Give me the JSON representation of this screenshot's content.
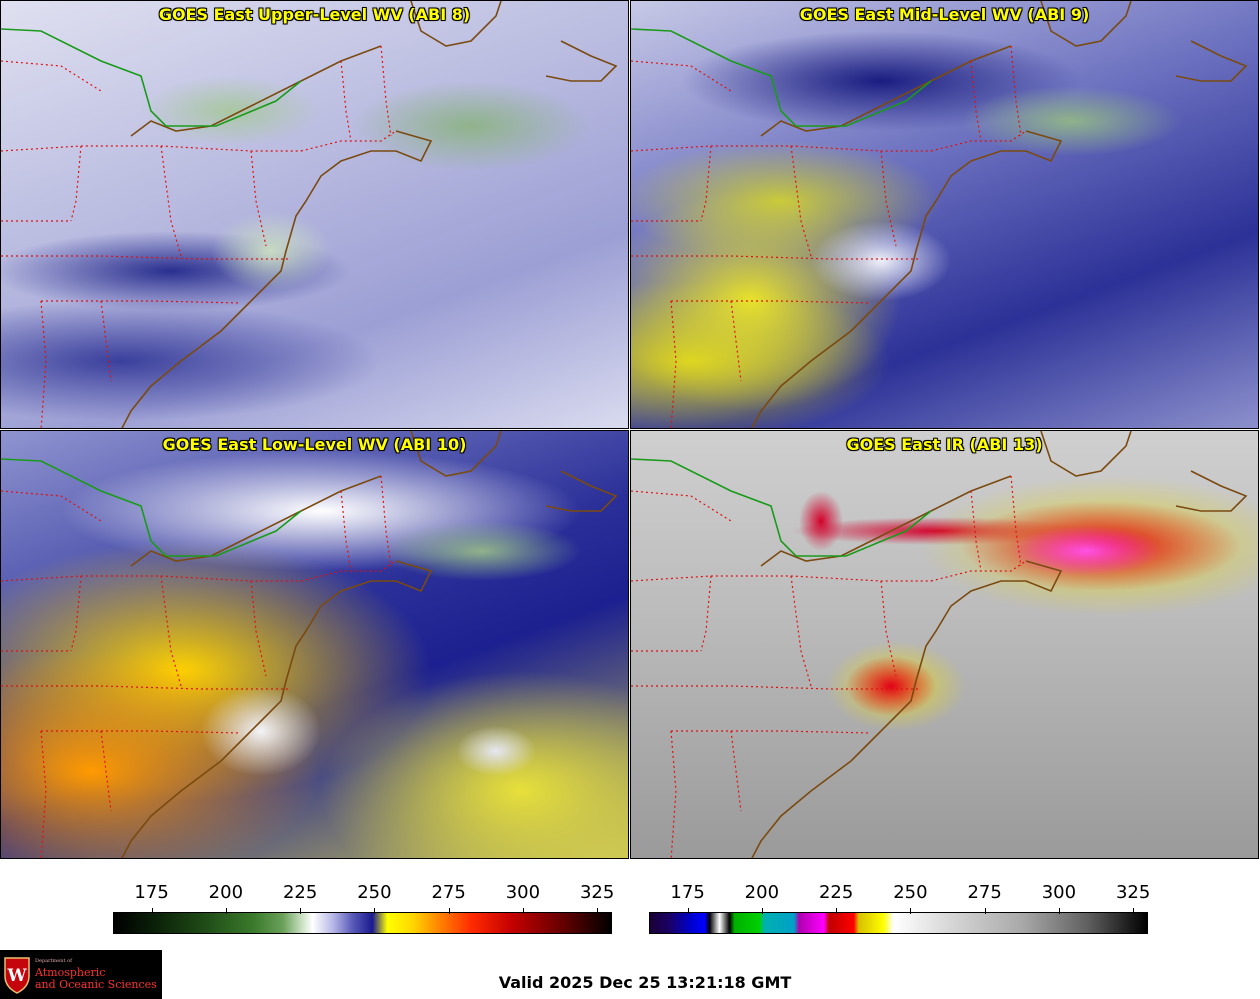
{
  "panels": [
    {
      "title": "GOES East Upper-Level WV (ABI 8)"
    },
    {
      "title": "GOES East Mid-Level WV (ABI 9)"
    },
    {
      "title": "GOES East Low-Level WV (ABI 10)"
    },
    {
      "title": "GOES East IR (ABI 13)"
    }
  ],
  "colorbars": [
    {
      "ticks": [
        "175",
        "200",
        "225",
        "250",
        "275",
        "300",
        "325"
      ],
      "min": 162,
      "max": 330
    },
    {
      "ticks": [
        "175",
        "200",
        "225",
        "250",
        "275",
        "300",
        "325"
      ],
      "min": 162,
      "max": 330
    }
  ],
  "logo": {
    "dept": "Department of",
    "line1": "Atmospheric",
    "line2": "and Oceanic Sciences"
  },
  "valid_time": "Valid 2025 Dec 25 13:21:18 GMT",
  "colors": {
    "title_text": "#ffff00",
    "state_borders": "#e01010",
    "coastlines": "#7a4a10",
    "international_border": "#1a9a1a"
  }
}
